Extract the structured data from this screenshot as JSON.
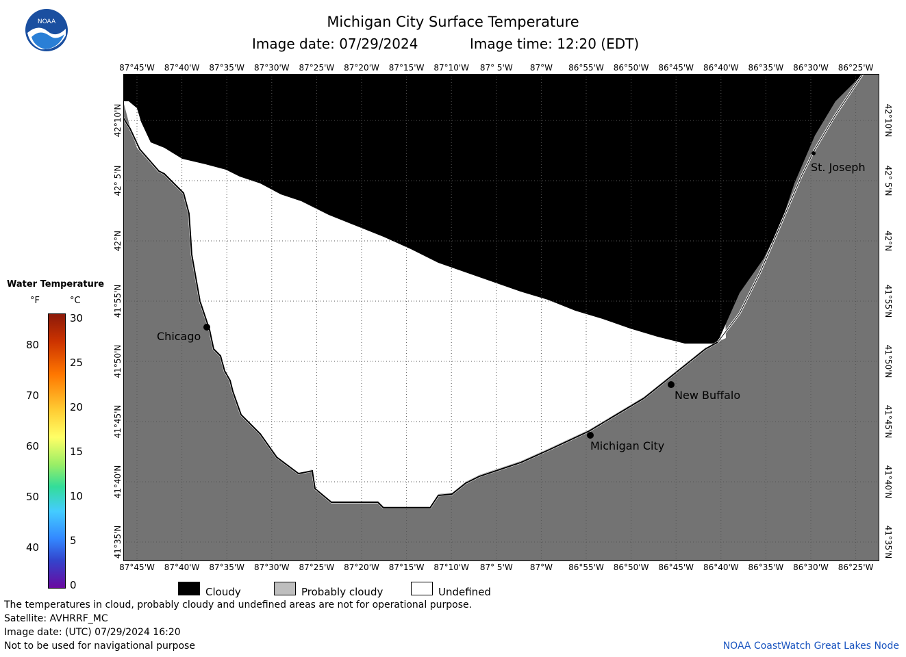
{
  "header": {
    "title": "Michigan City Surface Temperature",
    "image_date": "Image date: 07/29/2024",
    "image_time": "Image time: 12:20 (EDT)",
    "logo_text": "NOAA"
  },
  "map": {
    "longitude_labels": [
      "87°45'W",
      "87°40'W",
      "87°35'W",
      "87°30'W",
      "87°25'W",
      "87°20'W",
      "87°15'W",
      "87°10'W",
      "87° 5'W",
      "87°W",
      "86°55'W",
      "86°50'W",
      "86°45'W",
      "86°40'W",
      "86°35'W",
      "86°30'W",
      "86°25'W"
    ],
    "latitude_labels": [
      "42°10'N",
      "42° 5'N",
      "42°N",
      "41°55'N",
      "41°50'N",
      "41°45'N",
      "41°40'N",
      "41°35'N"
    ],
    "cities": [
      {
        "name": "Chicago"
      },
      {
        "name": "St. Joseph"
      },
      {
        "name": "New Buffalo"
      },
      {
        "name": "Michigan City"
      }
    ],
    "colors": {
      "cloudy": "#000000",
      "land": "#737373",
      "undefined": "#ffffff",
      "grid": "#555555"
    }
  },
  "scale": {
    "title": "Water Temperature",
    "unit_f": "°F",
    "unit_c": "°C",
    "fahrenheit": [
      "80",
      "70",
      "60",
      "50",
      "40"
    ],
    "celsius": [
      "30",
      "25",
      "20",
      "15",
      "10",
      "5",
      "0"
    ]
  },
  "legend": {
    "cloudy": "Cloudy",
    "probably_cloudy": "Probably cloudy",
    "undefined": "Undefined",
    "colors": {
      "cloudy": "#000000",
      "probably_cloudy": "#bebebe",
      "undefined": "#ffffff"
    }
  },
  "footer": {
    "disclaimer": "The temperatures in cloud, probably cloudy and undefined areas are not for operational purpose.",
    "satellite": "Satellite: AVHRRF_MC",
    "utc_date": "Image date: (UTC) 07/29/2024  16:20",
    "nav_warning": "Not to be used for navigational purpose",
    "credit": "NOAA CoastWatch Great Lakes Node"
  }
}
